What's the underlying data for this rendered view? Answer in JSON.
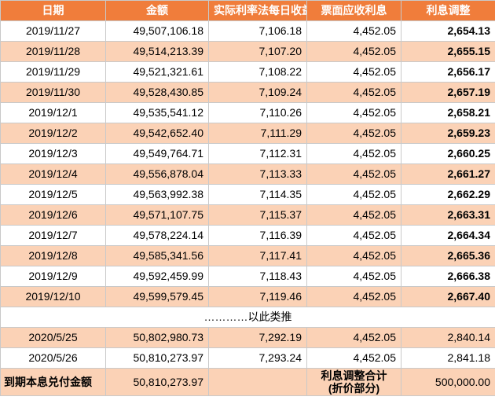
{
  "headers": {
    "date": "日期",
    "amount": "金额",
    "actual_yield": "实际利率法每日收益",
    "coupon_interest": "票面应收利息",
    "adjustment": "利息调整"
  },
  "rows": [
    {
      "date": "2019/11/27",
      "amount": "49,507,106.18",
      "yield": "7,106.18",
      "coupon": "4,452.05",
      "adjust": "2,654.13"
    },
    {
      "date": "2019/11/28",
      "amount": "49,514,213.39",
      "yield": "7,107.20",
      "coupon": "4,452.05",
      "adjust": "2,655.15"
    },
    {
      "date": "2019/11/29",
      "amount": "49,521,321.61",
      "yield": "7,108.22",
      "coupon": "4,452.05",
      "adjust": "2,656.17"
    },
    {
      "date": "2019/11/30",
      "amount": "49,528,430.85",
      "yield": "7,109.24",
      "coupon": "4,452.05",
      "adjust": "2,657.19"
    },
    {
      "date": "2019/12/1",
      "amount": "49,535,541.12",
      "yield": "7,110.26",
      "coupon": "4,452.05",
      "adjust": "2,658.21"
    },
    {
      "date": "2019/12/2",
      "amount": "49,542,652.40",
      "yield": "7,111.29",
      "coupon": "4,452.05",
      "adjust": "2,659.23"
    },
    {
      "date": "2019/12/3",
      "amount": "49,549,764.71",
      "yield": "7,112.31",
      "coupon": "4,452.05",
      "adjust": "2,660.25"
    },
    {
      "date": "2019/12/4",
      "amount": "49,556,878.04",
      "yield": "7,113.33",
      "coupon": "4,452.05",
      "adjust": "2,661.27"
    },
    {
      "date": "2019/12/5",
      "amount": "49,563,992.38",
      "yield": "7,114.35",
      "coupon": "4,452.05",
      "adjust": "2,662.29"
    },
    {
      "date": "2019/12/6",
      "amount": "49,571,107.75",
      "yield": "7,115.37",
      "coupon": "4,452.05",
      "adjust": "2,663.31"
    },
    {
      "date": "2019/12/7",
      "amount": "49,578,224.14",
      "yield": "7,116.39",
      "coupon": "4,452.05",
      "adjust": "2,664.34"
    },
    {
      "date": "2019/12/8",
      "amount": "49,585,341.56",
      "yield": "7,117.41",
      "coupon": "4,452.05",
      "adjust": "2,665.36"
    },
    {
      "date": "2019/12/9",
      "amount": "49,592,459.99",
      "yield": "7,118.43",
      "coupon": "4,452.05",
      "adjust": "2,666.38"
    },
    {
      "date": "2019/12/10",
      "amount": "49,599,579.45",
      "yield": "7,119.46",
      "coupon": "4,452.05",
      "adjust": "2,667.40"
    }
  ],
  "ellipsis": "…………以此类推",
  "tail_rows": [
    {
      "date": "2020/5/25",
      "amount": "50,802,980.73",
      "yield": "7,292.19",
      "coupon": "4,452.05",
      "adjust": "2,840.14"
    },
    {
      "date": "2020/5/26",
      "amount": "50,810,273.97",
      "yield": "7,293.24",
      "coupon": "4,452.05",
      "adjust": "2,841.18"
    }
  ],
  "footer": {
    "maturity_label": "到期本息兑付金额",
    "maturity_amount": "50,810,273.97",
    "adjust_total_label_1": "利息调整合计",
    "adjust_total_label_2": "(折价部分)",
    "adjust_total": "500,000.00"
  },
  "colors": {
    "header_bg": "#f07d3b",
    "band_bg": "#fbd2b6",
    "white_bg": "#ffffff"
  }
}
